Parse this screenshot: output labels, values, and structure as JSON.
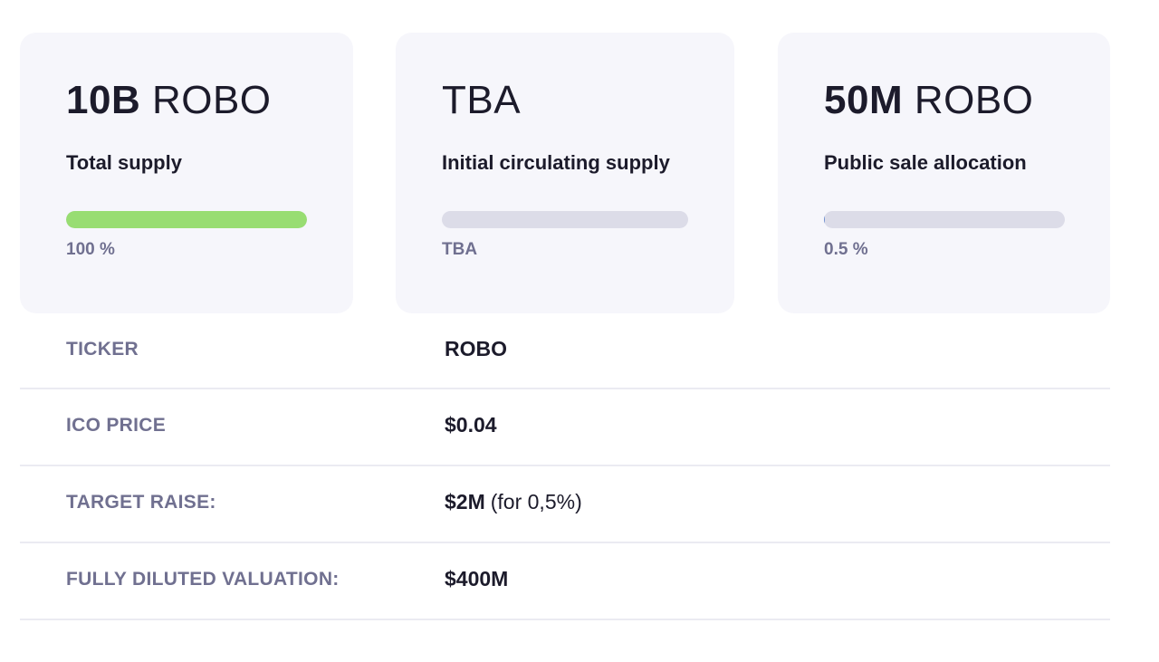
{
  "cards": [
    {
      "value_bold": "10B",
      "value_unit": "ROBO",
      "label": "Total supply",
      "progress_percent": 100,
      "progress_text": "100 %",
      "bar_color": "#98dd72"
    },
    {
      "value_bold": "",
      "value_unit": "TBA",
      "label": "Initial circulating supply",
      "progress_percent": 0,
      "progress_text": "TBA",
      "bar_color": "#dcdce8"
    },
    {
      "value_bold": "50M",
      "value_unit": "ROBO",
      "label": "Public sale allocation",
      "progress_percent": 0.5,
      "progress_text": "0.5 %",
      "bar_color": "#6f8fd0"
    }
  ],
  "rows": [
    {
      "key": "TICKER",
      "value": "ROBO",
      "extra": ""
    },
    {
      "key": "ICO PRICE",
      "value": "$0.04",
      "extra": ""
    },
    {
      "key": "TARGET RAISE:",
      "value": "$2M",
      "extra": "(for 0,5%)"
    },
    {
      "key": "FULLY DILUTED VALUATION:",
      "value": "$400M",
      "extra": ""
    }
  ]
}
